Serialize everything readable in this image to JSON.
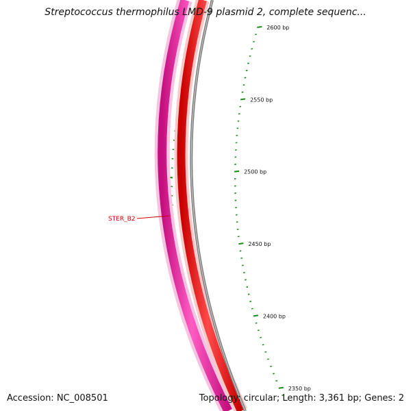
{
  "header": {
    "title": "Streptococcus thermophilus LMD-9 plasmid 2, complete sequenc..."
  },
  "footer": {
    "accession": "Accession: NC_008501",
    "summary": "Topology: circular; Length: 3,361 bp; Genes: 2"
  },
  "map": {
    "ticks": [
      {
        "bp": 2600,
        "label": "2600 bp"
      },
      {
        "bp": 2550,
        "label": "2550 bp"
      },
      {
        "bp": 2500,
        "label": "2500 bp"
      },
      {
        "bp": 2450,
        "label": "2450 bp"
      },
      {
        "bp": 2400,
        "label": "2400 bp"
      },
      {
        "bp": 2350,
        "label": "2350 bp"
      }
    ],
    "feature": {
      "label": "STER_B2"
    },
    "colors": {
      "tick": "#1a8a1a",
      "feature_label": "#cc0000",
      "track_magenta": "#e8189a",
      "track_red": "#ee1010",
      "track_gray": "#808080",
      "text": "#111111"
    }
  }
}
